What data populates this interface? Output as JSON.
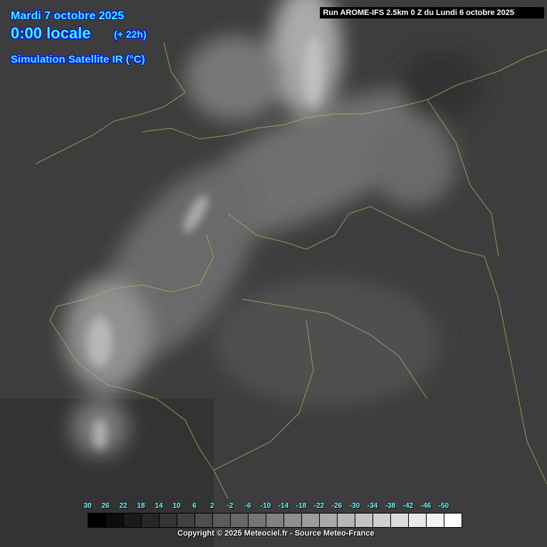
{
  "header": {
    "date": "Mardi 7 octobre 2025",
    "time": "0:00 locale",
    "lead": "(+ 22h)",
    "product": "Simulation Satellite IR (°C)"
  },
  "run": "Run AROME-IFS 2.5km 0 Z du Lundi 6 octobre 2025",
  "legend": {
    "labels": [
      "30",
      "26",
      "22",
      "18",
      "14",
      "10",
      "6",
      "2",
      "-2",
      "-6",
      "-10",
      "-14",
      "-18",
      "-22",
      "-26",
      "-30",
      "-34",
      "-38",
      "-42",
      "-46",
      "-50"
    ],
    "colors": [
      "#000000",
      "#0d0d0d",
      "#1a1a1a",
      "#272727",
      "#343434",
      "#414141",
      "#4e4e4e",
      "#5b5b5b",
      "#686868",
      "#757575",
      "#828282",
      "#8f8f8f",
      "#9c9c9c",
      "#a9a9a9",
      "#b6b6b6",
      "#c3c3c3",
      "#d0d0d0",
      "#dcdcdc",
      "#e8e8e8",
      "#f3f3f3",
      "#ffffff"
    ]
  },
  "copyright": "Copyright © 2025 Meteociel.fr - Source Meteo-France",
  "colors": {
    "title_text": "#33ffff",
    "title_outline": "#0000ff",
    "borders": "#b0b060"
  }
}
